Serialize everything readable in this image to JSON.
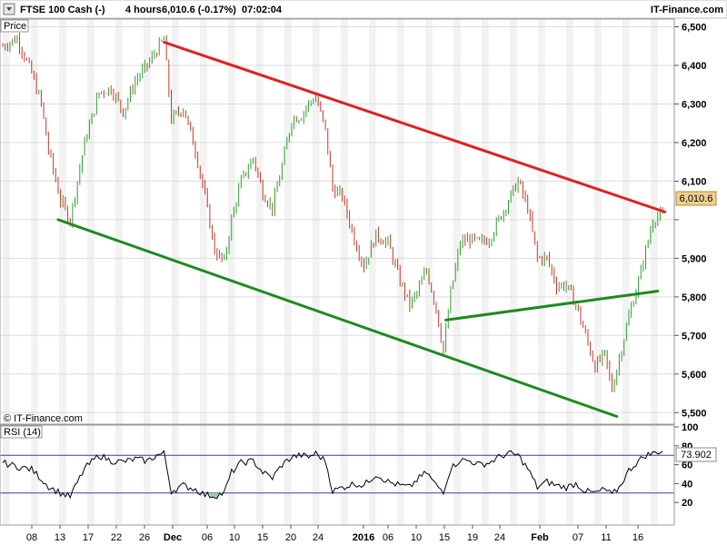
{
  "header": {
    "instrument": "FTSE 100 Cash (-)",
    "timeframe": "4 hours",
    "quote": "6,010.6 (-0.17%)",
    "time": "07:02:04",
    "brand": "IT-Finance.com"
  },
  "watermark": "© IT-Finance.com",
  "price_panel_label": "Price",
  "rsi_panel_label": "RSI (14)",
  "colors": {
    "up": "#2e9e2e",
    "down": "#c0392b",
    "resistance": "#e02020",
    "support": "#1e8a1e",
    "rsi_line": "#000000",
    "rsi_band": "#3a3aa8",
    "rsi_fill": "#9fcf9f",
    "last_price_box": "#f0d090",
    "rsi_box": "#f08080"
  },
  "chart_data": [
    {
      "type": "candlestick",
      "last_price_label": "6,010.6",
      "y_ticks": [
        5500,
        5600,
        5700,
        5800,
        5900,
        6000,
        6100,
        6200,
        6300,
        6400,
        6500
      ],
      "y_tick_labels": [
        "5,500",
        "5,600",
        "5,700",
        "5,800",
        "5,900",
        "",
        "6,100",
        "6,200",
        "6,300",
        "6,400",
        "6,500"
      ],
      "x_tick_labels": [
        "08",
        "13",
        "17",
        "22",
        "26",
        "Dec",
        "06",
        "10",
        "15",
        "20",
        "24",
        "2016",
        "06",
        "10",
        "15",
        "19",
        "24",
        "Feb",
        "07",
        "11",
        "16"
      ],
      "ylim": [
        5470,
        6520
      ],
      "close_path": [
        [
          0,
          6450
        ],
        [
          6,
          6470
        ],
        [
          12,
          6380
        ],
        [
          16,
          6300
        ],
        [
          19,
          6180
        ],
        [
          24,
          6050
        ],
        [
          28,
          6000
        ],
        [
          34,
          6200
        ],
        [
          40,
          6330
        ],
        [
          45,
          6340
        ],
        [
          50,
          6280
        ],
        [
          55,
          6360
        ],
        [
          60,
          6400
        ],
        [
          64,
          6440
        ],
        [
          67,
          6470
        ],
        [
          70,
          6260
        ],
        [
          75,
          6290
        ],
        [
          80,
          6180
        ],
        [
          84,
          6060
        ],
        [
          88,
          5920
        ],
        [
          92,
          5890
        ],
        [
          95,
          6000
        ],
        [
          99,
          6100
        ],
        [
          104,
          6160
        ],
        [
          108,
          6070
        ],
        [
          112,
          6030
        ],
        [
          116,
          6140
        ],
        [
          120,
          6260
        ],
        [
          124,
          6270
        ],
        [
          127,
          6300
        ],
        [
          130,
          6320
        ],
        [
          134,
          6230
        ],
        [
          137,
          6080
        ],
        [
          141,
          6060
        ],
        [
          146,
          5950
        ],
        [
          150,
          5880
        ],
        [
          155,
          5960
        ],
        [
          160,
          5940
        ],
        [
          165,
          5840
        ],
        [
          169,
          5780
        ],
        [
          172,
          5810
        ],
        [
          176,
          5870
        ],
        [
          180,
          5770
        ],
        [
          183,
          5660
        ],
        [
          186,
          5810
        ],
        [
          190,
          5940
        ],
        [
          194,
          5950
        ],
        [
          198,
          5940
        ],
        [
          202,
          5950
        ],
        [
          206,
          6000
        ],
        [
          210,
          6050
        ],
        [
          214,
          6100
        ],
        [
          218,
          6030
        ],
        [
          222,
          5900
        ],
        [
          226,
          5900
        ],
        [
          230,
          5830
        ],
        [
          234,
          5830
        ],
        [
          238,
          5780
        ],
        [
          242,
          5700
        ],
        [
          246,
          5620
        ],
        [
          250,
          5650
        ],
        [
          253,
          5560
        ],
        [
          256,
          5640
        ],
        [
          260,
          5750
        ],
        [
          264,
          5840
        ],
        [
          267,
          5920
        ],
        [
          270,
          6000
        ],
        [
          272,
          6010
        ]
      ],
      "rsi_path": [
        [
          0,
          62
        ],
        [
          6,
          58
        ],
        [
          12,
          55
        ],
        [
          16,
          45
        ],
        [
          19,
          37
        ],
        [
          24,
          30
        ],
        [
          28,
          26
        ],
        [
          34,
          56
        ],
        [
          40,
          70
        ],
        [
          45,
          64
        ],
        [
          50,
          63
        ],
        [
          55,
          66
        ],
        [
          60,
          64
        ],
        [
          64,
          70
        ],
        [
          67,
          72
        ],
        [
          70,
          32
        ],
        [
          75,
          38
        ],
        [
          80,
          34
        ],
        [
          84,
          28
        ],
        [
          88,
          27
        ],
        [
          92,
          30
        ],
        [
          95,
          52
        ],
        [
          99,
          62
        ],
        [
          104,
          64
        ],
        [
          108,
          52
        ],
        [
          112,
          46
        ],
        [
          116,
          60
        ],
        [
          120,
          68
        ],
        [
          124,
          70
        ],
        [
          127,
          68
        ],
        [
          130,
          72
        ],
        [
          134,
          64
        ],
        [
          137,
          32
        ],
        [
          141,
          36
        ],
        [
          146,
          40
        ],
        [
          150,
          38
        ],
        [
          155,
          50
        ],
        [
          160,
          42
        ],
        [
          165,
          38
        ],
        [
          169,
          36
        ],
        [
          172,
          44
        ],
        [
          176,
          52
        ],
        [
          180,
          38
        ],
        [
          183,
          32
        ],
        [
          186,
          56
        ],
        [
          190,
          65
        ],
        [
          194,
          64
        ],
        [
          198,
          60
        ],
        [
          202,
          62
        ],
        [
          206,
          68
        ],
        [
          210,
          72
        ],
        [
          214,
          70
        ],
        [
          218,
          56
        ],
        [
          222,
          36
        ],
        [
          226,
          42
        ],
        [
          230,
          38
        ],
        [
          234,
          36
        ],
        [
          238,
          40
        ],
        [
          242,
          32
        ],
        [
          246,
          30
        ],
        [
          250,
          34
        ],
        [
          253,
          28
        ],
        [
          256,
          36
        ],
        [
          260,
          54
        ],
        [
          264,
          64
        ],
        [
          267,
          70
        ],
        [
          270,
          72
        ],
        [
          272,
          73.9
        ]
      ],
      "trendlines": [
        {
          "name": "resistance",
          "from": [
            67,
            6460
          ],
          "to": [
            275,
            6020
          ]
        },
        {
          "name": "lower-support",
          "from": [
            23,
            6000
          ],
          "to": [
            255,
            5490
          ]
        },
        {
          "name": "inner-support",
          "from": [
            184,
            5740
          ],
          "to": [
            272,
            5815
          ]
        }
      ]
    },
    {
      "type": "line",
      "name": "RSI (14)",
      "last_value_label": "73.902",
      "upper_band": 70,
      "lower_band": 30,
      "y_ticks": [
        20,
        40,
        60,
        80,
        100
      ],
      "y_tick_labels": [
        "20",
        "40",
        "60",
        "80",
        "100"
      ],
      "ylim": [
        0,
        100
      ]
    }
  ]
}
